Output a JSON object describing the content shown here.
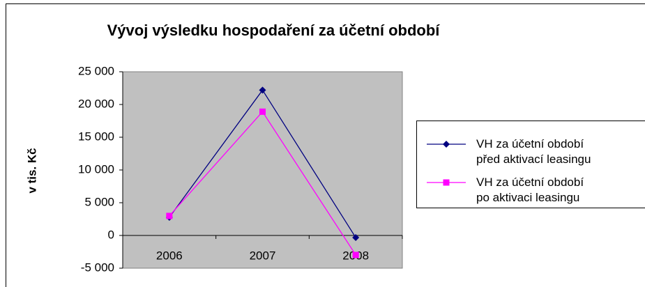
{
  "chart_data": {
    "type": "line",
    "title": "Vývoj výsledku hospodaření za účetní období",
    "y_label": "v tis. Kč",
    "categories": [
      "2006",
      "2007",
      "2008"
    ],
    "series": [
      {
        "name": "VH za účetní období\npřed aktivací leasingu",
        "color": "#000080",
        "marker": "diamond",
        "values": [
          2770,
          22200,
          -320
        ]
      },
      {
        "name": "VH za účetní období\npo aktivaci leasingu",
        "color": "#ff00ff",
        "marker": "square",
        "values": [
          2980,
          18900,
          -2980
        ]
      }
    ],
    "ylim": [
      -5000,
      25000
    ],
    "yticks": [
      {
        "value": -5000,
        "label": "-5 000"
      },
      0,
      {
        "value": 5000,
        "label": "5 000"
      },
      {
        "value": 10000,
        "label": "10 000"
      },
      {
        "value": 15000,
        "label": "15 000"
      },
      {
        "value": 20000,
        "label": "20 000"
      },
      {
        "value": 25000,
        "label": "25 000"
      }
    ],
    "grid": false,
    "legend": "right",
    "plot_background": "#c0c0c0"
  }
}
